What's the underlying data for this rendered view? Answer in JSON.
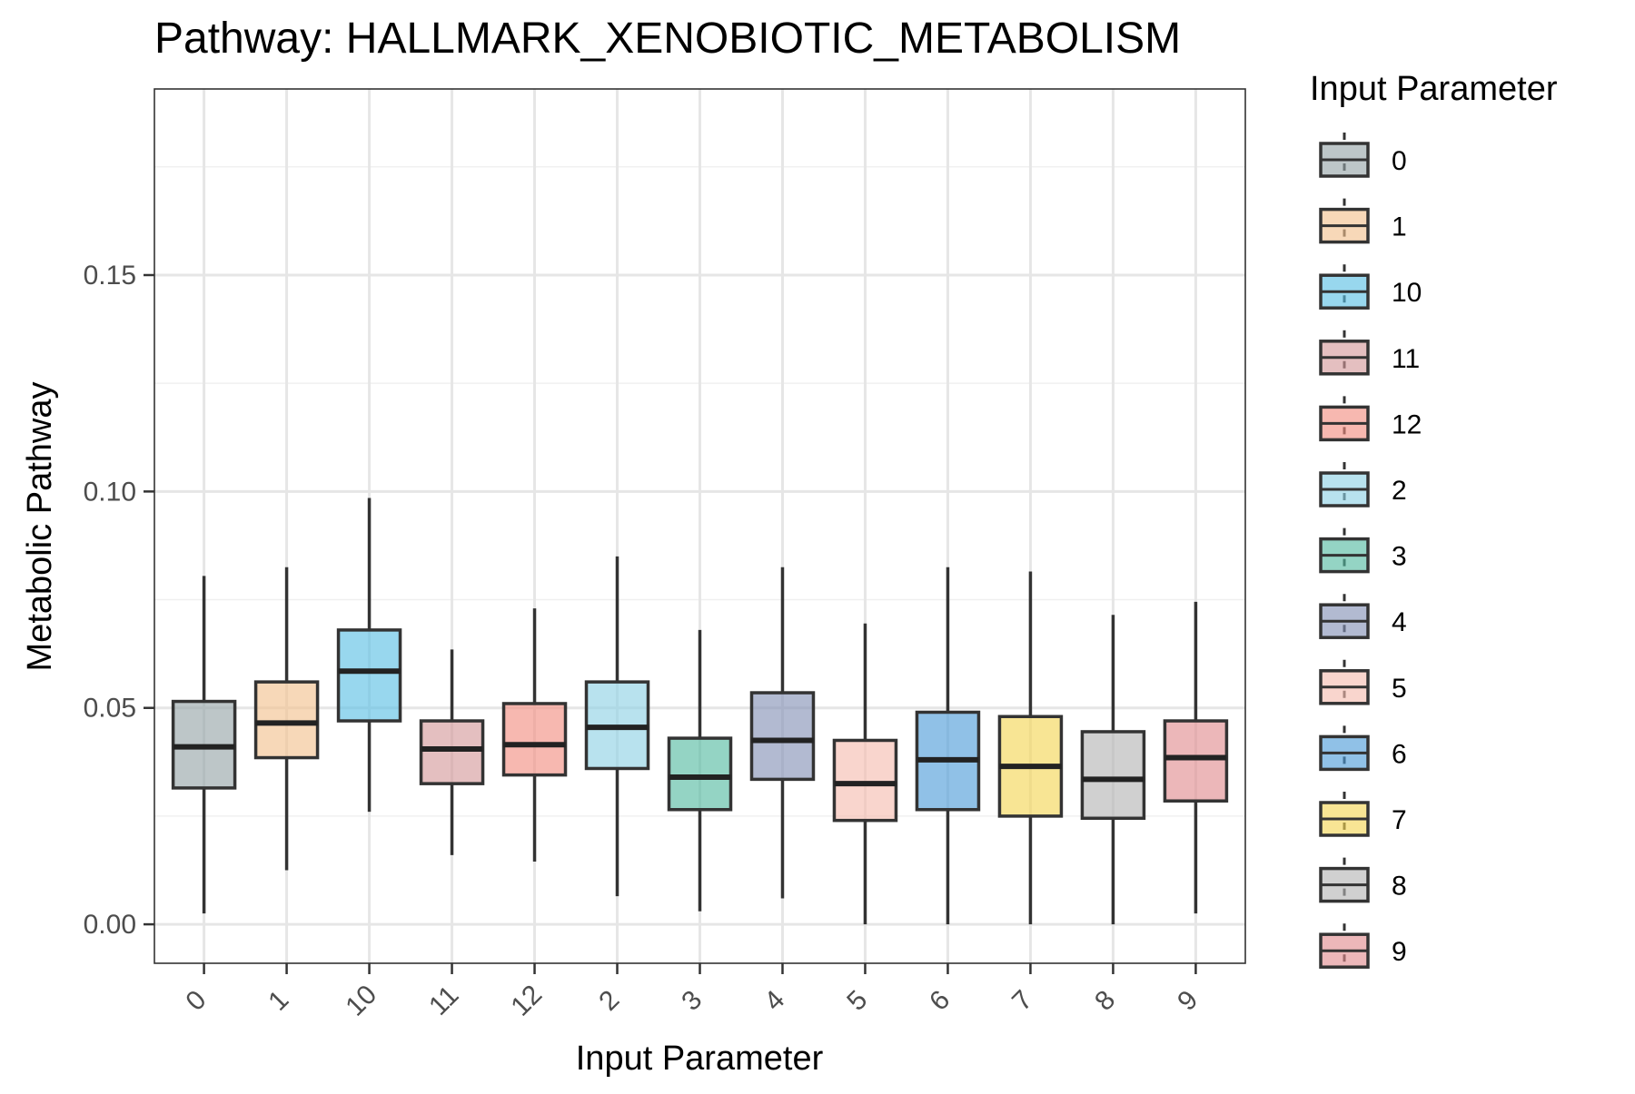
{
  "chart_data": {
    "type": "boxplot",
    "title": "Pathway: HALLMARK_XENOBIOTIC_METABOLISM",
    "xlabel": "Input Parameter",
    "ylabel": "Metabolic Pathway",
    "ylim": [
      -0.009,
      0.193
    ],
    "yticks": [
      0.0,
      0.05,
      0.1,
      0.15
    ],
    "ytick_labels": [
      "0.00",
      "0.05",
      "0.10",
      "0.15"
    ],
    "grid": true,
    "legend": {
      "title": "Input Parameter",
      "position": "right"
    },
    "categories": [
      "0",
      "1",
      "10",
      "11",
      "12",
      "2",
      "3",
      "4",
      "5",
      "6",
      "7",
      "8",
      "9"
    ],
    "boxes": [
      {
        "category": "0",
        "min": 0.0025,
        "q1": 0.0315,
        "median": 0.041,
        "q3": 0.0515,
        "max": 0.0805,
        "color": "#95A3A6"
      },
      {
        "category": "1",
        "min": 0.0125,
        "q1": 0.0385,
        "median": 0.0465,
        "q3": 0.056,
        "max": 0.0825,
        "color": "#F2C08C"
      },
      {
        "category": "10",
        "min": 0.026,
        "q1": 0.047,
        "median": 0.0585,
        "q3": 0.068,
        "max": 0.0985,
        "color": "#58BEE3"
      },
      {
        "category": "11",
        "min": 0.016,
        "q1": 0.0325,
        "median": 0.0405,
        "q3": 0.047,
        "max": 0.0635,
        "color": "#D4989A"
      },
      {
        "category": "12",
        "min": 0.0145,
        "q1": 0.0345,
        "median": 0.0415,
        "q3": 0.051,
        "max": 0.073,
        "color": "#F28C80"
      },
      {
        "category": "2",
        "min": 0.0065,
        "q1": 0.036,
        "median": 0.0455,
        "q3": 0.056,
        "max": 0.085,
        "color": "#8CD0E3"
      },
      {
        "category": "3",
        "min": 0.003,
        "q1": 0.0265,
        "median": 0.034,
        "q3": 0.043,
        "max": 0.068,
        "color": "#52BAA0"
      },
      {
        "category": "4",
        "min": 0.006,
        "q1": 0.0335,
        "median": 0.0425,
        "q3": 0.0535,
        "max": 0.0825,
        "color": "#8290B4"
      },
      {
        "category": "5",
        "min": 0.0,
        "q1": 0.024,
        "median": 0.0325,
        "q3": 0.0425,
        "max": 0.0695,
        "color": "#F6BBAE"
      },
      {
        "category": "6",
        "min": 0.0,
        "q1": 0.0265,
        "median": 0.038,
        "q3": 0.049,
        "max": 0.0825,
        "color": "#4C9BD9"
      },
      {
        "category": "7",
        "min": 0.0,
        "q1": 0.025,
        "median": 0.0365,
        "q3": 0.048,
        "max": 0.0815,
        "color": "#F3D552"
      },
      {
        "category": "8",
        "min": 0.0,
        "q1": 0.0245,
        "median": 0.0335,
        "q3": 0.0445,
        "max": 0.0715,
        "color": "#B3B3B3"
      },
      {
        "category": "9",
        "min": 0.0025,
        "q1": 0.0285,
        "median": 0.0385,
        "q3": 0.047,
        "max": 0.0745,
        "color": "#E08A8E"
      }
    ]
  }
}
